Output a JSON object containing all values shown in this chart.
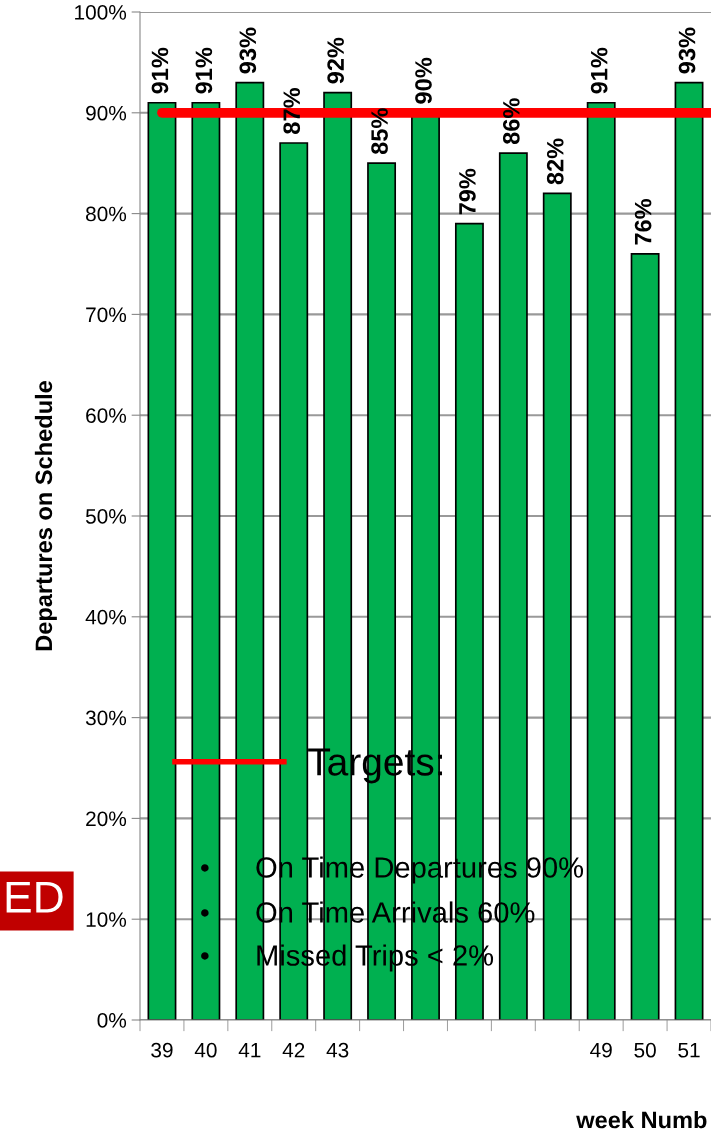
{
  "chart_data": {
    "type": "bar",
    "categories": [
      "39",
      "40",
      "41",
      "42",
      "43",
      null,
      null,
      null,
      null,
      null,
      "49",
      "50",
      "51"
    ],
    "values": [
      91,
      91,
      93,
      87,
      92,
      85,
      90,
      79,
      86,
      82,
      91,
      76,
      93
    ],
    "value_labels": [
      "91%",
      "91%",
      "93%",
      "87%",
      "92%",
      "85%",
      "90%",
      "79%",
      "86%",
      "82%",
      "91%",
      "76%",
      "93%"
    ],
    "color": "#00b050",
    "ylabel": "Departures on Schedule",
    "xlabel": "week Numb",
    "ylim": [
      0,
      100
    ],
    "yticks": [
      {
        "value": 0,
        "label": "0%"
      },
      {
        "value": 10,
        "label": "10%"
      },
      {
        "value": 20,
        "label": "20%"
      },
      {
        "value": 30,
        "label": "30%"
      },
      {
        "value": 40,
        "label": "40%"
      },
      {
        "value": 50,
        "label": "50%"
      },
      {
        "value": 60,
        "label": "60%"
      },
      {
        "value": 70,
        "label": "70%"
      },
      {
        "value": 80,
        "label": "80%"
      },
      {
        "value": 90,
        "label": "90%"
      },
      {
        "value": 100,
        "label": "100%"
      }
    ],
    "grid": "y",
    "ref_lines": [
      {
        "axis": "y",
        "value": 90,
        "label": "Targets:",
        "color": "#ff0000"
      }
    ],
    "legend": "bottom left",
    "annotations": [
      "•\tOn Time Departures 90%",
      "•\tOn Time Arrivals 60%",
      "•\tMissed Trips < 2%",
      "ED"
    ]
  }
}
